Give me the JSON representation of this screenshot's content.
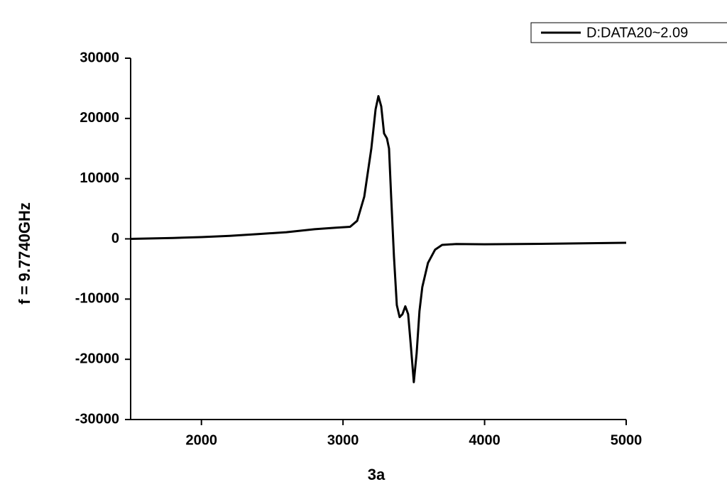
{
  "chart_data": {
    "type": "line",
    "x_label": "3a",
    "y_label": "f = 9.7740GHz",
    "x": [
      1500,
      1800,
      2000,
      2200,
      2400,
      2600,
      2800,
      2950,
      3050,
      3100,
      3150,
      3200,
      3230,
      3250,
      3270,
      3290,
      3310,
      3325,
      3340,
      3360,
      3380,
      3400,
      3420,
      3440,
      3460,
      3480,
      3500,
      3520,
      3540,
      3560,
      3600,
      3650,
      3700,
      3800,
      4000,
      4500,
      5000
    ],
    "series": [
      {
        "name": "D:DATA20~2.09",
        "color": "#000000",
        "values": [
          0,
          150,
          300,
          500,
          800,
          1100,
          1600,
          1850,
          2000,
          3000,
          7000,
          15000,
          21500,
          23700,
          22000,
          17500,
          16700,
          15000,
          7000,
          -3000,
          -11000,
          -13000,
          -12500,
          -11200,
          -12500,
          -18000,
          -23800,
          -19000,
          -12000,
          -8000,
          -4000,
          -1800,
          -1000,
          -850,
          -900,
          -800,
          -650
        ]
      }
    ],
    "xlim": [
      1500,
      5000
    ],
    "xticks": [
      2000,
      3000,
      4000,
      5000
    ],
    "ylim": [
      -30000,
      30000
    ],
    "yticks": [
      -30000,
      -20000,
      -10000,
      0,
      10000,
      20000,
      30000
    ],
    "legend": "top-right"
  }
}
